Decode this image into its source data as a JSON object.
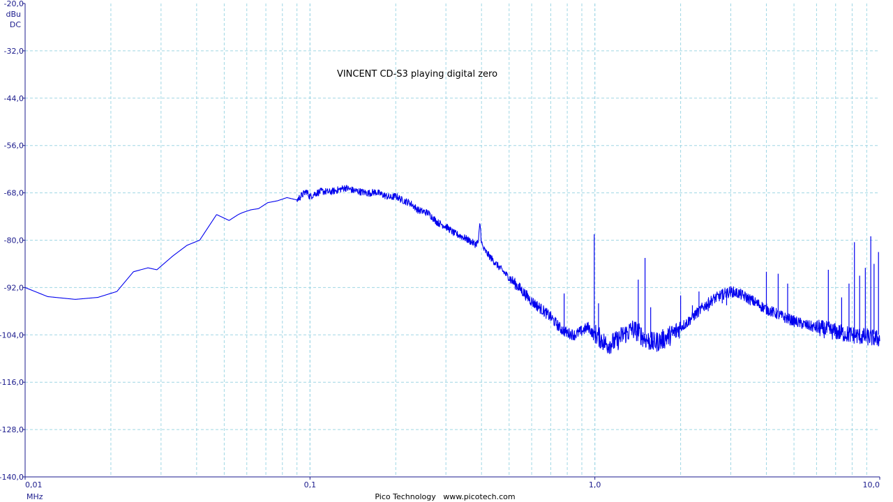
{
  "chart_data": {
    "type": "line",
    "title": "VINCENT CD-S3 playing digital zero",
    "xlabel": "MHz",
    "ylabel_unit": "dBu",
    "ylabel_coupling": "DC",
    "x_scale": "log",
    "xlim": [
      0.01,
      10.0
    ],
    "ylim": [
      -140.0,
      -20.0
    ],
    "grid": true,
    "footer": "Pico Technology   www.picotech.com",
    "x_tick_labels": [
      {
        "value": 0.01,
        "label": "0,01"
      },
      {
        "value": 0.1,
        "label": "0,1"
      },
      {
        "value": 1.0,
        "label": "1,0"
      },
      {
        "value": 10.0,
        "label": "10,0"
      }
    ],
    "y_tick_labels": [
      {
        "value": -20,
        "label": "-20,0"
      },
      {
        "value": -32,
        "label": "-32,0"
      },
      {
        "value": -44,
        "label": "-44,0"
      },
      {
        "value": -56,
        "label": "-56,0"
      },
      {
        "value": -68,
        "label": "-68,0"
      },
      {
        "value": -80,
        "label": "-80,0"
      },
      {
        "value": -92,
        "label": "-92,0"
      },
      {
        "value": -104,
        "label": "-104,0"
      },
      {
        "value": -116,
        "label": "-116,0"
      },
      {
        "value": -128,
        "label": "-128,0"
      },
      {
        "value": -140,
        "label": "-140,0"
      }
    ],
    "colors": {
      "trace": "#0000ee",
      "grid": "#9fd6e4",
      "axis": "#1a1a8c"
    },
    "series": [
      {
        "x": [
          0.01,
          0.012,
          0.015,
          0.018,
          0.021,
          0.024,
          0.027,
          0.029,
          0.033,
          0.037,
          0.041,
          0.047,
          0.052,
          0.056,
          0.058,
          0.062,
          0.066,
          0.071,
          0.077,
          0.083,
          0.09,
          0.097,
          0.1,
          0.104,
          0.11,
          0.117,
          0.125,
          0.133,
          0.142,
          0.15,
          0.16,
          0.17,
          0.18,
          0.192,
          0.2,
          0.21,
          0.225,
          0.24,
          0.26,
          0.28,
          0.3,
          0.32,
          0.34,
          0.36,
          0.38,
          0.39,
          0.395,
          0.4,
          0.405,
          0.42,
          0.45,
          0.5,
          0.55,
          0.6,
          0.65,
          0.7,
          0.76,
          0.8,
          0.85,
          0.9,
          0.95,
          0.99,
          1.0,
          1.01,
          1.05,
          1.1,
          1.15,
          1.2,
          1.25,
          1.3,
          1.35,
          1.4,
          1.45,
          1.5,
          1.6,
          1.7,
          1.8,
          1.9,
          2.0,
          2.1,
          2.2,
          2.4,
          2.6,
          2.8,
          3.0,
          3.2,
          3.4,
          3.6,
          3.8,
          4.0,
          4.3,
          4.6,
          5.0,
          5.5,
          6.0,
          6.5,
          7.0,
          7.5,
          8.0,
          8.5,
          9.0,
          9.5,
          10.0
        ],
        "y": [
          -92,
          -94.3,
          -95,
          -94.5,
          -93,
          -88,
          -87,
          -87.5,
          -84,
          -81.3,
          -80,
          -73.5,
          -75,
          -73.5,
          -73,
          -72.3,
          -72,
          -70.5,
          -70,
          -69.2,
          -69.8,
          -67.6,
          -69,
          -68.2,
          -67.6,
          -67.8,
          -67.3,
          -66.7,
          -67.4,
          -67.7,
          -68.1,
          -67.8,
          -68.5,
          -69.2,
          -68.8,
          -69.8,
          -70.6,
          -72.4,
          -73.1,
          -75.5,
          -76.5,
          -78.2,
          -79,
          -80,
          -81,
          -80.5,
          -75.5,
          -80.5,
          -82,
          -83.5,
          -86,
          -89.5,
          -92.5,
          -95.5,
          -97.5,
          -99.5,
          -102.5,
          -103.5,
          -104,
          -103,
          -102,
          -104,
          -103.5,
          -104,
          -105,
          -106.5,
          -106,
          -105.5,
          -104,
          -103.5,
          -102.5,
          -103,
          -104,
          -105,
          -106,
          -105.5,
          -104.5,
          -103.5,
          -102,
          -101,
          -99.5,
          -97,
          -95,
          -93.8,
          -93,
          -93.5,
          -94.5,
          -95.5,
          -96.5,
          -97.5,
          -98.5,
          -99.5,
          -100.5,
          -101.5,
          -102.2,
          -102.7,
          -103.2,
          -103.7,
          -104,
          -104.3,
          -104.5,
          -104.8,
          -105
        ]
      }
    ],
    "spikes": [
      {
        "x": 0.78,
        "y": -93.5
      },
      {
        "x": 0.995,
        "y": -78.5
      },
      {
        "x": 1.03,
        "y": -96
      },
      {
        "x": 1.42,
        "y": -90
      },
      {
        "x": 1.5,
        "y": -84.5
      },
      {
        "x": 1.57,
        "y": -97
      },
      {
        "x": 2.0,
        "y": -94
      },
      {
        "x": 2.2,
        "y": -96.5
      },
      {
        "x": 2.32,
        "y": -93
      },
      {
        "x": 2.5,
        "y": -98
      },
      {
        "x": 2.8,
        "y": -96
      },
      {
        "x": 2.9,
        "y": -96.5
      },
      {
        "x": 4.0,
        "y": -88
      },
      {
        "x": 4.4,
        "y": -88.5
      },
      {
        "x": 4.75,
        "y": -91
      },
      {
        "x": 6.6,
        "y": -87.5
      },
      {
        "x": 7.35,
        "y": -94.5
      },
      {
        "x": 7.8,
        "y": -91
      },
      {
        "x": 8.15,
        "y": -80.5
      },
      {
        "x": 8.5,
        "y": -89
      },
      {
        "x": 8.9,
        "y": -87
      },
      {
        "x": 9.3,
        "y": -79
      },
      {
        "x": 9.55,
        "y": -86
      },
      {
        "x": 9.9,
        "y": -83
      }
    ]
  }
}
